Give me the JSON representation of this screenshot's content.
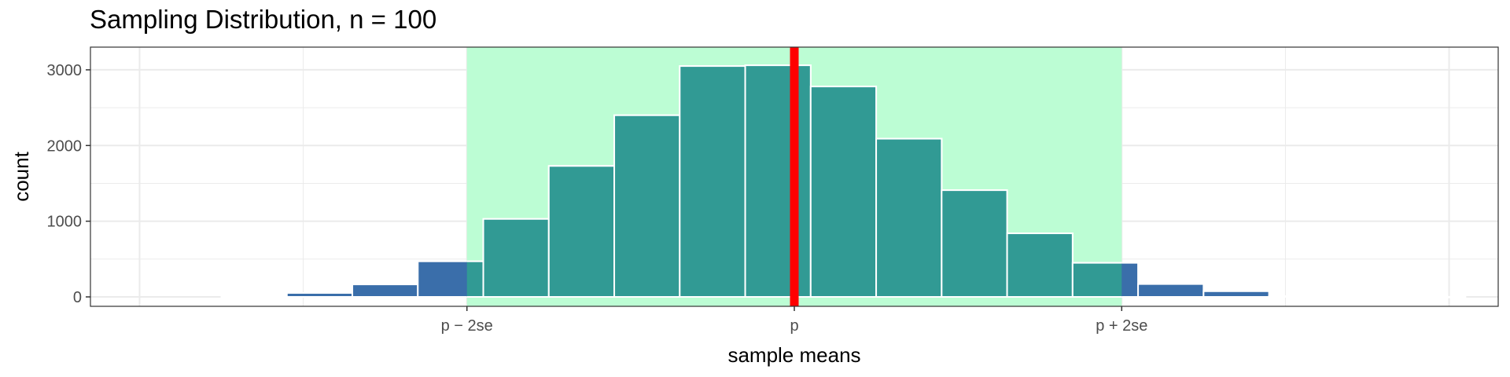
{
  "chart_data": {
    "type": "bar",
    "title": "Sampling Distribution, n = 100",
    "xlabel": "sample means",
    "ylabel": "count",
    "ylim": [
      0,
      3300
    ],
    "y_ticks": [
      0,
      1000,
      2000,
      3000
    ],
    "x_ticks": [
      {
        "label": "p − 2se",
        "value": -2
      },
      {
        "label": "p",
        "value": 0
      },
      {
        "label": "p + 2se",
        "value": 2
      }
    ],
    "xlim": [
      -4.3,
      4.3
    ],
    "bins": [
      {
        "x": -3.3,
        "count": 8
      },
      {
        "x": -2.9,
        "count": 52
      },
      {
        "x": -2.5,
        "count": 165
      },
      {
        "x": -2.1,
        "count": 470
      },
      {
        "x": -1.7,
        "count": 1030
      },
      {
        "x": -1.3,
        "count": 1730
      },
      {
        "x": -0.9,
        "count": 2400
      },
      {
        "x": -0.5,
        "count": 3050
      },
      {
        "x": -0.1,
        "count": 3060
      },
      {
        "x": 0.3,
        "count": 2780
      },
      {
        "x": 0.7,
        "count": 2090
      },
      {
        "x": 1.1,
        "count": 1410
      },
      {
        "x": 1.5,
        "count": 840
      },
      {
        "x": 1.9,
        "count": 450
      },
      {
        "x": 2.3,
        "count": 170
      },
      {
        "x": 2.7,
        "count": 75
      },
      {
        "x": 3.1,
        "count": 10
      },
      {
        "x": 3.5,
        "count": 4
      },
      {
        "x": 3.9,
        "count": 1
      }
    ],
    "bin_width": 0.4,
    "highlight_range": [
      -2,
      2
    ],
    "reference_line": 0,
    "grid": true,
    "colors": {
      "bar_outside": "#3a6eaa",
      "bar_inside": "#319a94",
      "bar_outline": "#ffffff",
      "highlight_region": "#bcfdd4",
      "reference_line": "#ff0000",
      "grid": "#ebebeb"
    }
  }
}
